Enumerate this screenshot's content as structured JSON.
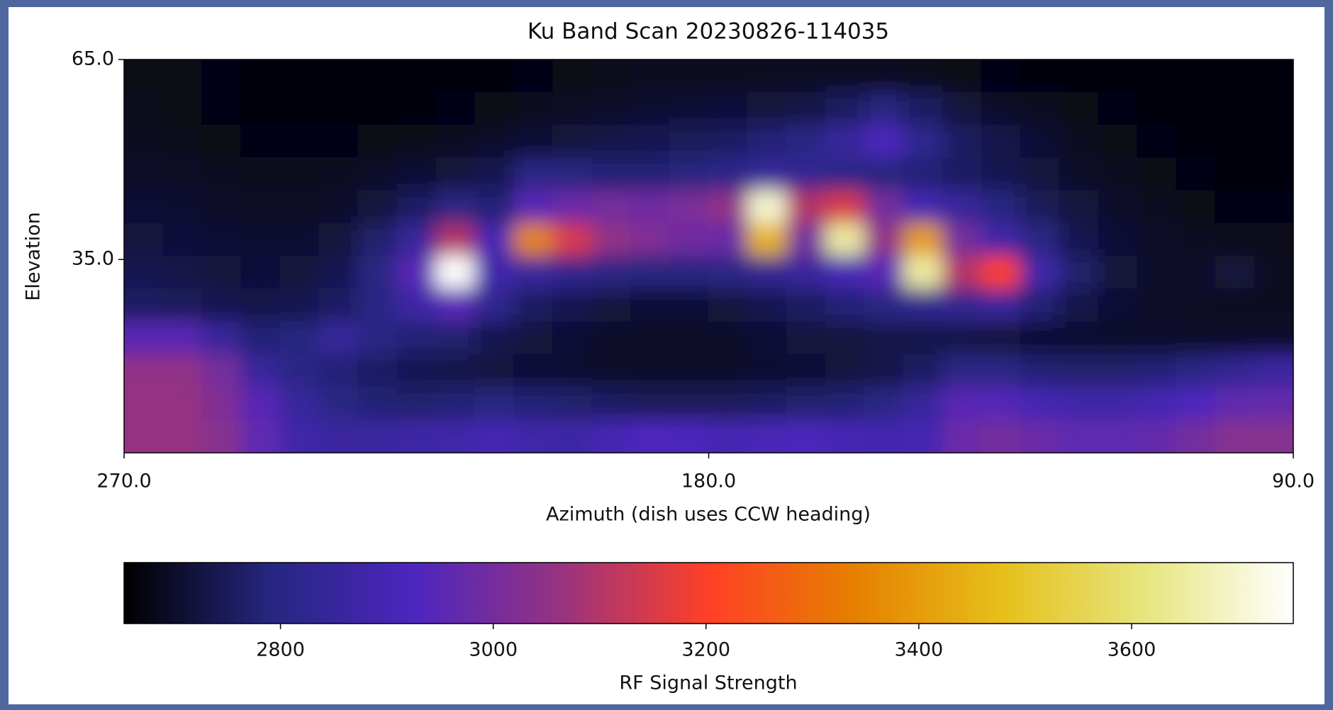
{
  "chart_data": {
    "type": "heatmap",
    "title": "Ku Band Scan 20230826-114035",
    "xlabel": "Azimuth (dish uses CCW heading)",
    "ylabel": "Elevation",
    "xlim": [
      270,
      90
    ],
    "xticks": [
      {
        "value": 270,
        "label": "270.0"
      },
      {
        "value": 180,
        "label": "180.0"
      },
      {
        "value": 90,
        "label": "90.0"
      }
    ],
    "ylim": [
      6,
      65
    ],
    "yticks": [
      {
        "value": 35,
        "label": "35.0"
      },
      {
        "value": 65,
        "label": "65.0"
      }
    ],
    "colormap": [
      "#000000",
      "#262680",
      "#4d26bf",
      "#99337f",
      "#ff4026",
      "#e68000",
      "#e6bf1a",
      "#e6e680",
      "#ffffff"
    ],
    "colorbar": {
      "label": "RF Signal Strength",
      "clim": [
        2653,
        3752
      ],
      "ticks": [
        2800,
        3000,
        3200,
        3400,
        3600
      ]
    },
    "z": [
      [
        2680,
        2680,
        2675,
        2670,
        2670,
        2670,
        2670,
        2670,
        2670,
        2670,
        2675,
        2680,
        2685,
        2690,
        2690,
        2690,
        2690,
        2690,
        2690,
        2690,
        2685,
        2680,
        2675,
        2670,
        2670,
        2670,
        2665,
        2665,
        2665,
        2665
      ],
      [
        2685,
        2680,
        2675,
        2670,
        2670,
        2670,
        2670,
        2670,
        2675,
        2680,
        2690,
        2695,
        2700,
        2705,
        2710,
        2715,
        2720,
        2730,
        2760,
        2790,
        2760,
        2720,
        2700,
        2690,
        2680,
        2675,
        2670,
        2665,
        2665,
        2665
      ],
      [
        2690,
        2685,
        2680,
        2675,
        2675,
        2675,
        2680,
        2685,
        2690,
        2700,
        2710,
        2720,
        2730,
        2740,
        2750,
        2760,
        2780,
        2800,
        2850,
        2920,
        2820,
        2760,
        2730,
        2710,
        2690,
        2680,
        2675,
        2670,
        2665,
        2665
      ],
      [
        2700,
        2695,
        2690,
        2685,
        2685,
        2690,
        2700,
        2710,
        2720,
        2740,
        2800,
        2790,
        2780,
        2780,
        2790,
        2810,
        2840,
        2830,
        2810,
        2790,
        2780,
        2760,
        2740,
        2720,
        2700,
        2690,
        2680,
        2675,
        2670,
        2670
      ],
      [
        2710,
        2705,
        2700,
        2695,
        2695,
        2700,
        2720,
        2760,
        2800,
        2780,
        2950,
        2980,
        3000,
        2990,
        3010,
        3050,
        3700,
        3100,
        3150,
        3000,
        2900,
        2850,
        2790,
        2750,
        2720,
        2700,
        2690,
        2680,
        2675,
        2675
      ],
      [
        2720,
        2715,
        2710,
        2705,
        2705,
        2720,
        2770,
        2850,
        3100,
        2900,
        3350,
        3150,
        3050,
        3020,
        2990,
        2980,
        3450,
        3000,
        3650,
        3050,
        3400,
        3000,
        2880,
        2800,
        2740,
        2710,
        2700,
        2690,
        2685,
        2685
      ],
      [
        2740,
        2730,
        2720,
        2715,
        2720,
        2740,
        2800,
        2950,
        3750,
        2880,
        2850,
        2820,
        2800,
        2790,
        2790,
        2800,
        2830,
        2850,
        2900,
        2950,
        3650,
        3100,
        3200,
        2880,
        2770,
        2720,
        2700,
        2700,
        2720,
        2690
      ],
      [
        2760,
        2750,
        2740,
        2730,
        2740,
        2760,
        2800,
        2870,
        2950,
        2820,
        2760,
        2740,
        2720,
        2710,
        2710,
        2720,
        2740,
        2760,
        2780,
        2800,
        2820,
        2830,
        2850,
        2780,
        2730,
        2710,
        2700,
        2695,
        2690,
        2690
      ],
      [
        2950,
        2950,
        2850,
        2780,
        2790,
        2850,
        2800,
        2780,
        2770,
        2740,
        2720,
        2710,
        2700,
        2700,
        2700,
        2700,
        2710,
        2720,
        2720,
        2730,
        2730,
        2730,
        2720,
        2710,
        2705,
        2700,
        2700,
        2700,
        2700,
        2700
      ],
      [
        3050,
        3050,
        3000,
        2850,
        2800,
        2780,
        2760,
        2740,
        2730,
        2720,
        2710,
        2705,
        2700,
        2700,
        2700,
        2700,
        2705,
        2710,
        2720,
        2730,
        2760,
        2800,
        2800,
        2780,
        2770,
        2770,
        2780,
        2800,
        2830,
        2860
      ],
      [
        3060,
        3060,
        3020,
        2950,
        2850,
        2800,
        2780,
        2770,
        2780,
        2790,
        2780,
        2770,
        2760,
        2750,
        2750,
        2750,
        2760,
        2770,
        2780,
        2800,
        2850,
        2950,
        2940,
        2900,
        2880,
        2880,
        2900,
        2930,
        2960,
        2970
      ],
      [
        3060,
        3060,
        3030,
        2960,
        2880,
        2860,
        2860,
        2870,
        2880,
        2900,
        2880,
        2870,
        2900,
        2930,
        2920,
        2900,
        2910,
        2920,
        2900,
        2890,
        2900,
        2980,
        3000,
        2980,
        2960,
        2960,
        2970,
        3000,
        3030,
        3030
      ]
    ]
  }
}
